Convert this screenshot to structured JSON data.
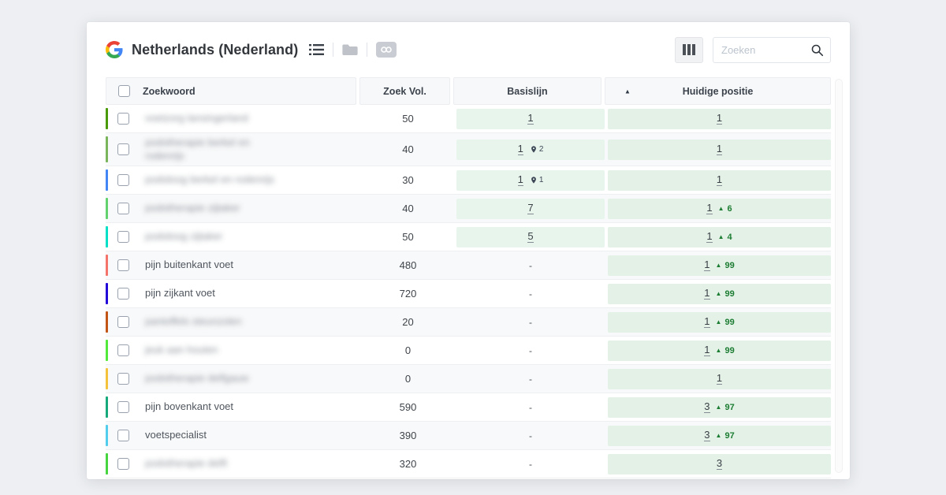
{
  "header": {
    "title": "Netherlands (Nederland)",
    "search_placeholder": "Zoeken"
  },
  "table": {
    "columns": {
      "keyword": "Zoekwoord",
      "volume": "Zoek Vol.",
      "baseline": "Basislijn",
      "position": "Huidige positie"
    },
    "rows": [
      {
        "bar_color": "#4a9a06",
        "keyword": "voetzorg lansingerland",
        "blurred": true,
        "volume": "50",
        "baseline": "1",
        "pin": null,
        "position": "1",
        "change": null
      },
      {
        "bar_color": "#7ab55c",
        "keyword": "podotherapie berkel en\nrodenrijs",
        "blurred": true,
        "volume": "40",
        "baseline": "1",
        "pin": "2",
        "position": "1",
        "change": null
      },
      {
        "bar_color": "#4285f4",
        "keyword": "podoloog berkel en rodenrijs",
        "blurred": true,
        "volume": "30",
        "baseline": "1",
        "pin": "1",
        "position": "1",
        "change": null
      },
      {
        "bar_color": "#62d26f",
        "keyword": "podotherapie zijtaker",
        "blurred": true,
        "volume": "40",
        "baseline": "7",
        "pin": null,
        "position": "1",
        "change": "6"
      },
      {
        "bar_color": "#00e0c6",
        "keyword": "podoloog zijtaker",
        "blurred": true,
        "volume": "50",
        "baseline": "5",
        "pin": null,
        "position": "1",
        "change": "4"
      },
      {
        "bar_color": "#f4736a",
        "keyword": "pijn buitenkant voet",
        "blurred": false,
        "volume": "480",
        "baseline": "-",
        "pin": null,
        "position": "1",
        "change": "99"
      },
      {
        "bar_color": "#2307d8",
        "keyword": "pijn zijkant voet",
        "blurred": false,
        "volume": "720",
        "baseline": "-",
        "pin": null,
        "position": "1",
        "change": "99"
      },
      {
        "bar_color": "#c25415",
        "keyword": "pantoffels steunzolen",
        "blurred": true,
        "volume": "20",
        "baseline": "-",
        "pin": null,
        "position": "1",
        "change": "99"
      },
      {
        "bar_color": "#52e93a",
        "keyword": "jeuk aan houten",
        "blurred": true,
        "volume": "0",
        "baseline": "-",
        "pin": null,
        "position": "1",
        "change": "99"
      },
      {
        "bar_color": "#f5c33b",
        "keyword": "podotherapie delfgauw",
        "blurred": true,
        "volume": "0",
        "baseline": "-",
        "pin": null,
        "position": "1",
        "change": null
      },
      {
        "bar_color": "#16a97c",
        "keyword": "pijn bovenkant voet",
        "blurred": false,
        "volume": "590",
        "baseline": "-",
        "pin": null,
        "position": "3",
        "change": "97"
      },
      {
        "bar_color": "#53cdec",
        "keyword": "voetspecialist",
        "blurred": false,
        "volume": "390",
        "baseline": "-",
        "pin": null,
        "position": "3",
        "change": "97"
      },
      {
        "bar_color": "#46d53e",
        "keyword": "podotherapie delft",
        "blurred": true,
        "volume": "320",
        "baseline": "-",
        "pin": null,
        "position": "3",
        "change": null
      }
    ]
  },
  "colors": {
    "baseline_cell_bg": "#e8f5ec",
    "position_cell_bg": "#e3f1e7",
    "change_green": "#1d7d33",
    "card_bg": "#ffffff",
    "page_bg": "#edeff2"
  }
}
